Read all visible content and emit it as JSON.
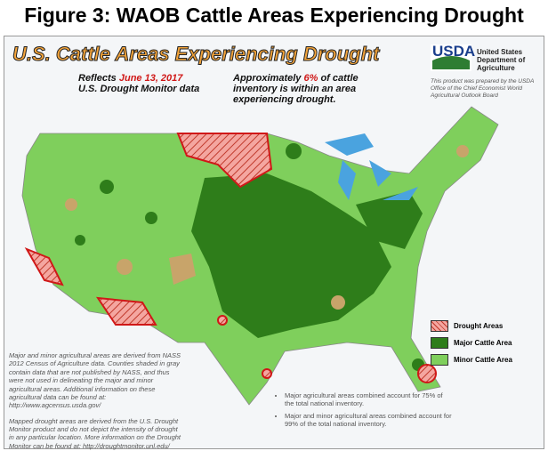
{
  "figure_title": "Figure 3: WAOB Cattle Areas Experiencing Drought",
  "map": {
    "title": "U.S. Cattle Areas Experiencing Drought",
    "date_prefix": "Reflects",
    "date": "June 13, 2017",
    "data_source": "U.S. Drought Monitor data",
    "summary_prefix": "Approximately",
    "summary_value": "6%",
    "summary_suffix": "of cattle inventory is within an area experiencing drought.",
    "logo": {
      "acronym": "USDA",
      "name": "United States Department of Agriculture"
    },
    "credit": "This product was prepared by the USDA Office of the Chief Economist World Agricultural Outlook Board",
    "legend": [
      {
        "label": "Drought Areas",
        "color": "#f4a6a0"
      },
      {
        "label": "Major Cattle Area",
        "color": "#2e7d1a"
      },
      {
        "label": "Minor Cattle Area",
        "color": "#7fcf5c"
      }
    ],
    "notes": [
      "Major and minor agricultural areas are derived from NASS 2012 Census of Agriculture data. Counties shaded in gray contain data that are not published by NASS, and thus were not used in delineating the major and minor agricultural areas. Additional information on these agricultural data can be found at: http://www.agcensus.usda.gov/",
      "Mapped drought areas are derived from the U.S. Drought Monitor product and do not depict the intensity of drought in any particular location. More information on the Drought Monitor can be found at: http://droughtmonitor.unl.edu/"
    ],
    "bullets": [
      "Major agricultural areas combined account for 75% of the total national inventory.",
      "Major and minor agricultural areas combined account for 99% of the total national inventory."
    ]
  }
}
